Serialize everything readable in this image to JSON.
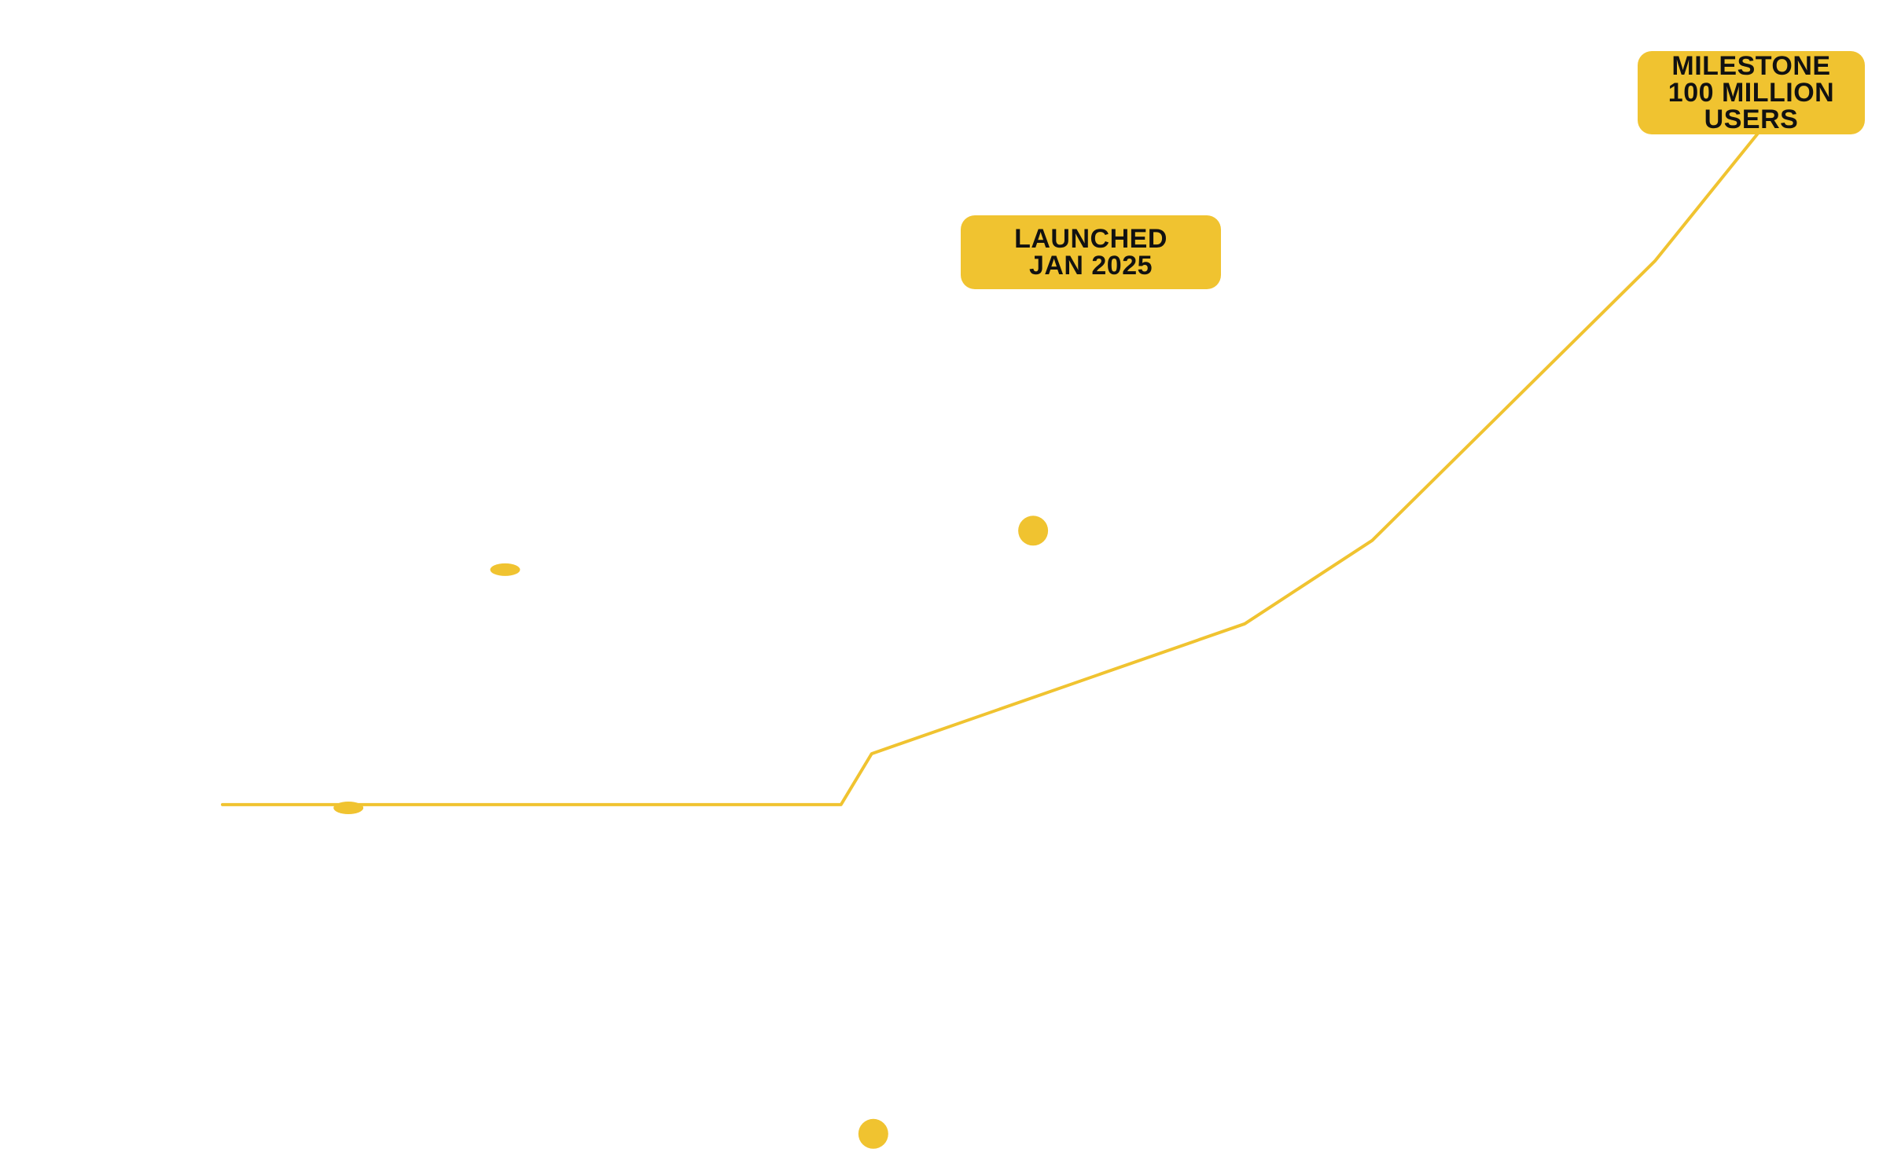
{
  "colors": {
    "accent": "#F0C330",
    "text": "#111111",
    "background": "#FFFFFF"
  },
  "chart_data": {
    "type": "line",
    "title": "",
    "xlabel": "",
    "ylabel": "",
    "grid": false,
    "legend": "none",
    "xlim": [
      0,
      100
    ],
    "ylim": [
      0,
      100
    ],
    "series": [
      {
        "values": [
          {
            "x": 0,
            "y": 27.8
          },
          {
            "x": 38.3,
            "y": 27.8
          },
          {
            "x": 40.2,
            "y": 32.5
          },
          {
            "x": 63.3,
            "y": 44.5
          },
          {
            "x": 71.2,
            "y": 52.2
          },
          {
            "x": 88.7,
            "y": 78.0
          },
          {
            "x": 97.2,
            "y": 93.7
          }
        ]
      }
    ],
    "markers": [
      {
        "x": 7.8,
        "y": 27.5,
        "shape": "flat-ellipse"
      },
      {
        "x": 17.5,
        "y": 49.5,
        "shape": "flat-ellipse"
      },
      {
        "x": 40.3,
        "y": -2.6,
        "shape": "circle"
      },
      {
        "x": 50.2,
        "y": 53.1,
        "shape": "circle"
      }
    ],
    "annotations": [
      {
        "id": "launched",
        "text": "LAUNCHED\nJAN 2025"
      },
      {
        "id": "milestone",
        "text": "MILESTONE\n100 MILLION\nUSERS"
      }
    ]
  }
}
